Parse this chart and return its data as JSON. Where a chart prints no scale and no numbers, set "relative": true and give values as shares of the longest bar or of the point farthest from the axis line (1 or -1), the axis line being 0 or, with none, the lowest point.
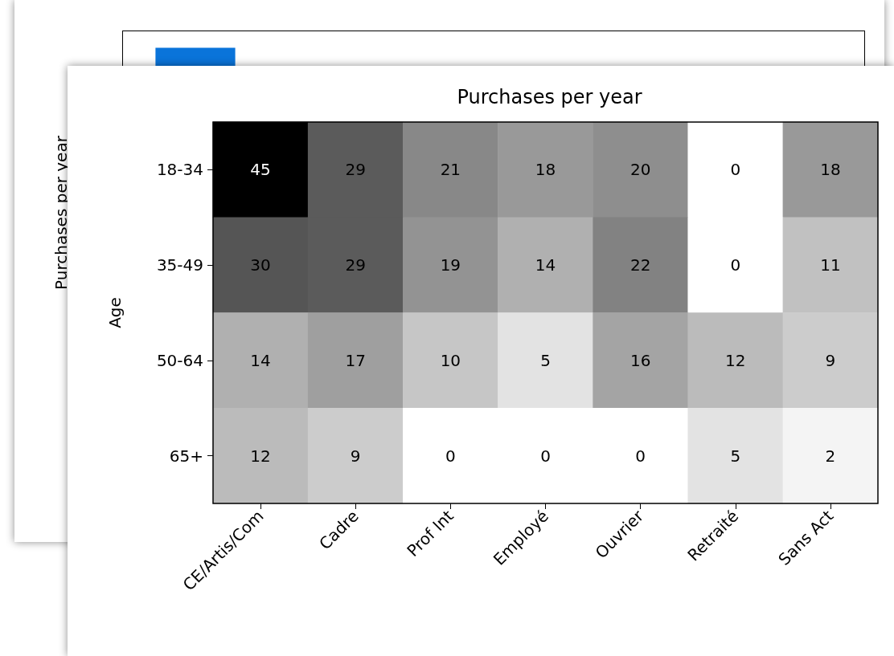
{
  "chart_data": [
    {
      "type": "bar",
      "relative": true,
      "ylabel": "Purchases per year",
      "categories": [
        null
      ],
      "values": [
        1
      ],
      "color": "#0a74da"
    },
    {
      "type": "heatmap",
      "title": "Purchases per year",
      "ylabel": "Age",
      "categories": [
        "CE/Artis/Com",
        "Cadre",
        "Prof Int",
        "Employé",
        "Ouvrier",
        "Retraité",
        "Sans Act"
      ],
      "y_categories": [
        "18-34",
        "35-49",
        "50-64",
        "65+"
      ],
      "cells": [
        [
          45,
          29,
          21,
          18,
          20,
          0,
          18
        ],
        [
          30,
          29,
          19,
          14,
          22,
          0,
          11
        ],
        [
          14,
          17,
          10,
          5,
          16,
          12,
          9
        ],
        [
          12,
          9,
          0,
          0,
          0,
          5,
          2
        ]
      ],
      "data_labels": true
    }
  ]
}
